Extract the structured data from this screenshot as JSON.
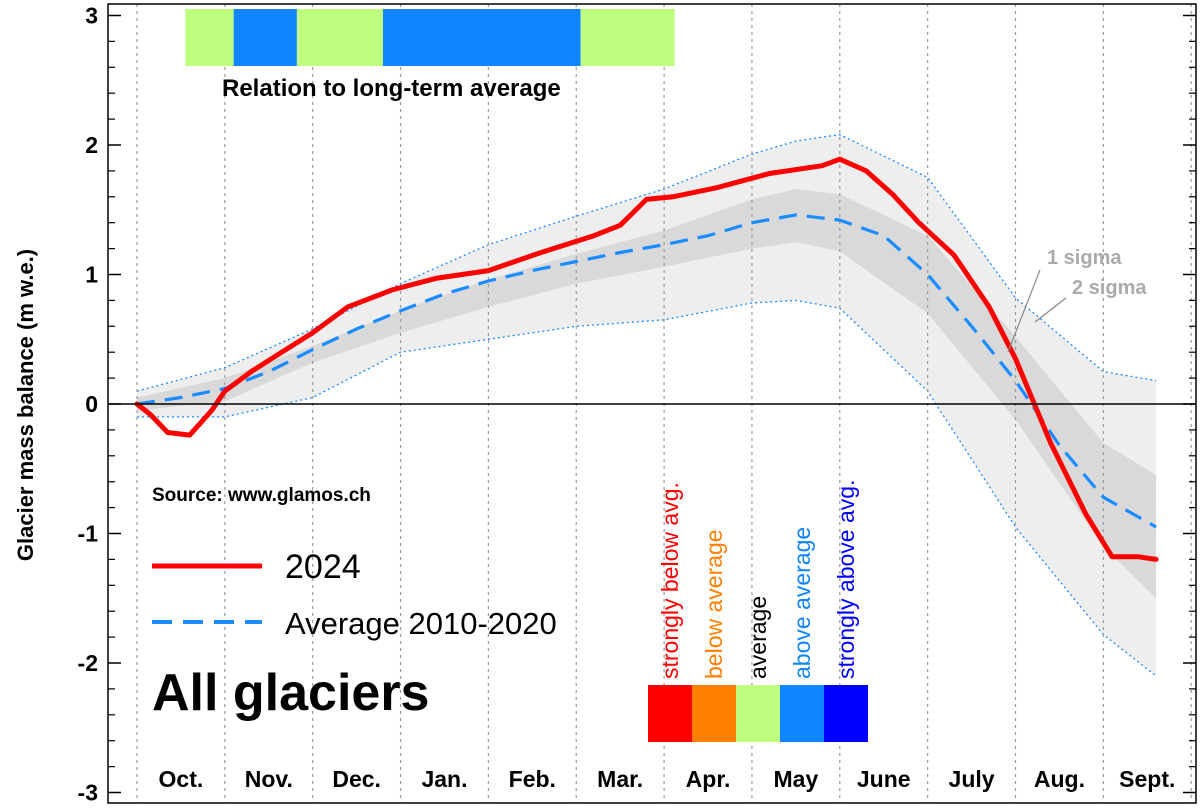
{
  "chart_data": {
    "type": "line",
    "title": "All glaciers",
    "source": "Source: www.glamos.ch",
    "ylabel": "Glacier mass balance (m w.e.)",
    "xlabel": "",
    "ylim": [
      -3,
      3
    ],
    "y_ticks": [
      "3",
      "2",
      "1",
      "0",
      "-1",
      "-2",
      "-3"
    ],
    "months": [
      "Oct.",
      "Nov.",
      "Dec.",
      "Jan.",
      "Feb.",
      "Mar.",
      "Apr.",
      "May",
      "June",
      "July",
      "Aug.",
      "Sept."
    ],
    "grid": "vertical dotted lines at month boundaries",
    "series": [
      {
        "name": "2024",
        "color": "#ff0000",
        "style": "solid",
        "x": [
          0,
          0.15,
          0.35,
          0.6,
          0.85,
          1.0,
          1.3,
          1.6,
          2.0,
          2.4,
          2.9,
          3.4,
          4.0,
          4.6,
          5.2,
          5.5,
          5.8,
          6.1,
          6.6,
          7.2,
          7.8,
          8.0,
          8.3,
          8.6,
          8.9,
          9.3,
          9.7,
          10.0,
          10.4,
          10.8,
          11.1,
          11.4,
          11.6
        ],
        "values": [
          0.0,
          -0.08,
          -0.22,
          -0.24,
          -0.05,
          0.1,
          0.25,
          0.38,
          0.55,
          0.75,
          0.88,
          0.97,
          1.03,
          1.17,
          1.3,
          1.38,
          1.58,
          1.6,
          1.67,
          1.78,
          1.84,
          1.89,
          1.8,
          1.62,
          1.4,
          1.15,
          0.75,
          0.35,
          -0.3,
          -0.85,
          -1.18,
          -1.18,
          -1.2
        ]
      },
      {
        "name": "Average 2010-2020",
        "color": "#1a8cff",
        "style": "dashed",
        "x": [
          0,
          0.5,
          1.0,
          1.5,
          2.0,
          2.5,
          3.0,
          3.5,
          4.0,
          4.5,
          5.0,
          5.5,
          6.0,
          6.5,
          7.0,
          7.5,
          8.0,
          8.5,
          9.0,
          9.5,
          10.0,
          10.5,
          11.0,
          11.6
        ],
        "values": [
          0.0,
          0.05,
          0.12,
          0.25,
          0.42,
          0.58,
          0.72,
          0.85,
          0.95,
          1.03,
          1.1,
          1.17,
          1.23,
          1.3,
          1.4,
          1.46,
          1.42,
          1.3,
          1.0,
          0.6,
          0.18,
          -0.32,
          -0.72,
          -0.95
        ]
      }
    ],
    "bands": {
      "x": [
        0,
        1,
        2,
        3,
        4,
        5,
        6,
        7,
        7.5,
        8,
        9,
        10,
        11,
        11.6
      ],
      "sigma1_upper": [
        0.05,
        0.2,
        0.45,
        0.72,
        0.96,
        1.16,
        1.34,
        1.58,
        1.66,
        1.62,
        1.3,
        0.52,
        -0.3,
        -0.55
      ],
      "sigma1_lower": [
        -0.05,
        0.02,
        0.32,
        0.55,
        0.75,
        0.93,
        1.06,
        1.2,
        1.25,
        1.18,
        0.7,
        -0.12,
        -1.1,
        -1.5
      ],
      "sigma2_upper": [
        0.1,
        0.28,
        0.58,
        0.93,
        1.23,
        1.45,
        1.66,
        1.93,
        2.03,
        2.08,
        1.75,
        0.82,
        0.25,
        0.18
      ],
      "sigma2_lower": [
        -0.1,
        -0.1,
        0.05,
        0.4,
        0.5,
        0.6,
        0.65,
        0.78,
        0.8,
        0.74,
        0.1,
        -0.95,
        -1.78,
        -2.1
      ],
      "sigma1_label": "1 sigma",
      "sigma2_label": "2 sigma",
      "sigma1_color": "#d9d9d9",
      "sigma2_color": "#eeeeee"
    },
    "relation_bar": {
      "caption": "Relation to long-term average",
      "segments": [
        {
          "start": 0.55,
          "end": 1.1,
          "color": "#bfff7f"
        },
        {
          "start": 1.1,
          "end": 1.82,
          "color": "#0f85ff"
        },
        {
          "start": 1.82,
          "end": 2.8,
          "color": "#bfff7f"
        },
        {
          "start": 2.8,
          "end": 5.05,
          "color": "#0f85ff"
        },
        {
          "start": 5.05,
          "end": 6.12,
          "color": "#bfff7f"
        }
      ]
    },
    "color_scale": [
      {
        "label": "strongly below avg.",
        "color": "#ff0000",
        "text_color": "#ff0000"
      },
      {
        "label": "below average",
        "color": "#ff7f00",
        "text_color": "#ff7f00"
      },
      {
        "label": "average",
        "color": "#bfff7f",
        "text_color": "#000000"
      },
      {
        "label": "above average",
        "color": "#0f85ff",
        "text_color": "#0f85ff"
      },
      {
        "label": "strongly above avg.",
        "color": "#0000ff",
        "text_color": "#0000ff"
      }
    ]
  }
}
